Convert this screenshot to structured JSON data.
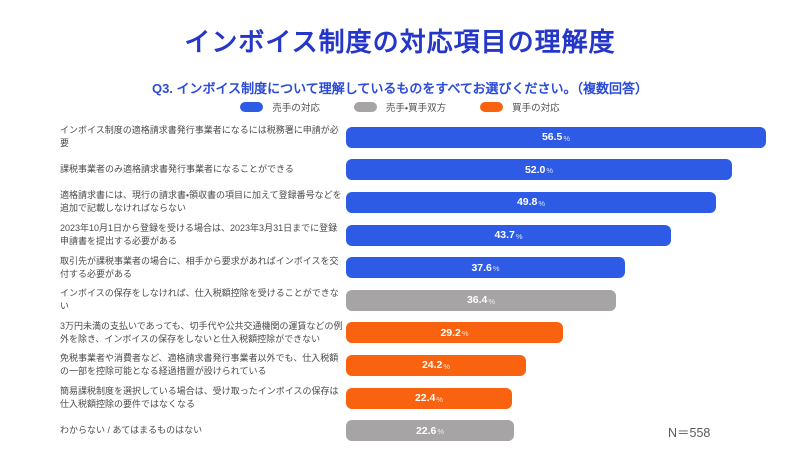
{
  "page": {
    "title": "インボイス制度の対応項目の理解度",
    "subtitle": "Q3. インボイス制度について理解しているものをすべてお選びください。（複数回答）",
    "note": "N＝558"
  },
  "colors": {
    "title_text": "#2437C8",
    "subtitle_text": "#2B4BD8",
    "label_text": "#4A4A4A",
    "value_text": "#FFFFFF",
    "seller": "#2E5BE6",
    "both": "#A6A4A4",
    "buyer": "#F9630F"
  },
  "legend": [
    {
      "label": "売手の対応",
      "group": "seller"
    },
    {
      "label": "売手・買手双方",
      "group": "both"
    },
    {
      "label": "買手の対応",
      "group": "buyer"
    }
  ],
  "chart_data": {
    "type": "bar",
    "orientation": "horizontal",
    "title": "インボイス制度の対応項目の理解度",
    "unit": "%",
    "grid": false,
    "legend_position": "top",
    "xlim": [
      0,
      58.7
    ],
    "sample_size": "N＝558",
    "categories": [
      "インボイス制度の適格請求書発行事業者になるには税務署に申請が必要",
      "課税事業者のみ適格請求書発行事業者になることができる",
      "適格請求書には、現行の請求書・領収書の項目に加えて登録番号などを追加で記載しなければならない",
      "2023年10月1日から登録を受ける場合は、2023年3月31日までに登録申請書を提出する必要がある",
      "取引先が課税事業者の場合に、相手から要求があればインボイスを交付する必要がある",
      "インボイスの保存をしなければ、仕入税額控除を受けることができない",
      "3万円未満の支払いであっても、切手代や公共交通機関の運賃などの例外を除き、インボイスの保存をしないと仕入税額控除ができない",
      "免税事業者や消費者など、適格請求書発行事業者以外でも、仕入税額の一部を控除可能となる経過措置が設けられている",
      "簡易課税制度を選択している場合は、受け取ったインボイスの保存は仕入税額控除の要件ではなくなる",
      "わからない / あてはまるものはない"
    ],
    "values": [
      56.5,
      52.0,
      49.8,
      43.7,
      37.6,
      36.4,
      29.2,
      24.2,
      22.4,
      22.6
    ],
    "value_labels": [
      "56.5",
      "52.0",
      "49.8",
      "43.7",
      "37.6",
      "36.4",
      "29.2",
      "24.2",
      "22.4",
      "22.6"
    ],
    "groups": [
      "seller",
      "seller",
      "seller",
      "seller",
      "seller",
      "both",
      "buyer",
      "buyer",
      "buyer",
      "both"
    ]
  }
}
